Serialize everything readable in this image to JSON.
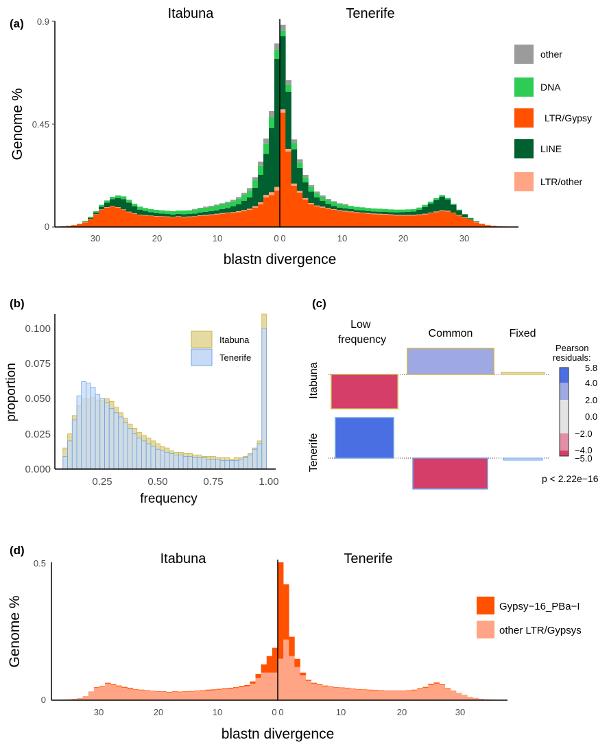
{
  "colors": {
    "other": "#9B9B9B",
    "DNA": "#2ECC55",
    "LTR_Gypsy": "#FF5100",
    "LINE": "#00602F",
    "LTR_other": "#FFA585",
    "itabuna_fill": "#E6DAA3",
    "itabuna_edge": "#C9B24A",
    "tenerife_fill": "#C7DBF7",
    "tenerife_edge": "#6FA3E6",
    "res_high": "#4A6FE3",
    "res_mid": "#9EA8E2",
    "res_low": "#D63E6A"
  },
  "chart_data": [
    {
      "panel": "(a)",
      "type": "bar",
      "stacked": true,
      "group_titles": [
        "Itabuna",
        "Tenerife"
      ],
      "xlabel": "blastn divergence",
      "ylabel": "Genome %",
      "ylim": [
        0,
        0.9
      ],
      "yticks": [
        "0",
        "0.45",
        "0.9"
      ],
      "xticks_left": [
        "30",
        "20",
        "10",
        "0"
      ],
      "xticks_right": [
        "0",
        "10",
        "20",
        "30"
      ],
      "legend_position": "right",
      "series": [
        {
          "name": "other",
          "color": "#9B9B9B",
          "left": [
            0,
            0,
            0,
            0,
            0,
            0,
            0,
            0,
            0,
            0,
            0,
            0,
            0,
            0,
            0,
            0,
            0,
            0,
            0,
            0,
            0,
            0,
            0,
            0,
            0.003,
            0.003,
            0.004,
            0.004,
            0.005,
            0.005,
            0.005,
            0.006,
            0.007,
            0.008,
            0.01,
            0.012,
            0.018,
            0.022,
            0.025,
            0.028
          ],
          "right": [
            0.025,
            0.02,
            0.015,
            0.013,
            0.01,
            0.008,
            0.007,
            0.006,
            0.005,
            0.005,
            0.004,
            0.004,
            0,
            0,
            0,
            0,
            0,
            0,
            0,
            0,
            0,
            0,
            0,
            0,
            0,
            0,
            0,
            0,
            0,
            0,
            0,
            0,
            0,
            0,
            0,
            0,
            0,
            0,
            0,
            0
          ]
        },
        {
          "name": "DNA",
          "color": "#2ECC55",
          "left": [
            0,
            0,
            0,
            0.002,
            0.003,
            0.005,
            0.006,
            0.008,
            0.009,
            0.01,
            0.011,
            0.012,
            0.012,
            0.012,
            0.013,
            0.013,
            0.013,
            0.014,
            0.014,
            0.014,
            0.015,
            0.015,
            0.016,
            0.016,
            0.017,
            0.018,
            0.019,
            0.02,
            0.02,
            0.021,
            0.022,
            0.023,
            0.025,
            0.028,
            0.03,
            0.035,
            0.04,
            0.045,
            0.05,
            0.04
          ],
          "right": [
            0.025,
            0.03,
            0.028,
            0.025,
            0.022,
            0.02,
            0.019,
            0.018,
            0.017,
            0.016,
            0.015,
            0.015,
            0.014,
            0.014,
            0.014,
            0.013,
            0.013,
            0.013,
            0.012,
            0.012,
            0.012,
            0.011,
            0.011,
            0.01,
            0.01,
            0.009,
            0.008,
            0.008,
            0.007,
            0.006,
            0.005,
            0.004,
            0.003,
            0.002,
            0.001,
            0,
            0,
            0,
            0,
            0
          ]
        },
        {
          "name": "LTR/Gypsy",
          "color": "#FF5100",
          "left": [
            0.003,
            0.005,
            0.008,
            0.012,
            0.02,
            0.035,
            0.055,
            0.075,
            0.085,
            0.09,
            0.085,
            0.075,
            0.065,
            0.058,
            0.052,
            0.05,
            0.048,
            0.046,
            0.045,
            0.044,
            0.042,
            0.045,
            0.043,
            0.044,
            0.045,
            0.048,
            0.05,
            0.052,
            0.055,
            0.058,
            0.06,
            0.062,
            0.065,
            0.07,
            0.075,
            0.085,
            0.1,
            0.13,
            0.14,
            0.16
          ],
          "right": [
            0.5,
            0.33,
            0.18,
            0.15,
            0.12,
            0.1,
            0.09,
            0.085,
            0.08,
            0.075,
            0.07,
            0.068,
            0.065,
            0.062,
            0.06,
            0.058,
            0.056,
            0.055,
            0.054,
            0.052,
            0.05,
            0.05,
            0.05,
            0.05,
            0.052,
            0.055,
            0.06,
            0.065,
            0.07,
            0.068,
            0.06,
            0.05,
            0.04,
            0.03,
            0.02,
            0.012,
            0.008,
            0.005,
            0.003,
            0.002
          ]
        },
        {
          "name": "LINE",
          "color": "#00602F",
          "left": [
            0,
            0,
            0,
            0,
            0.002,
            0.004,
            0.007,
            0.012,
            0.02,
            0.03,
            0.04,
            0.045,
            0.04,
            0.03,
            0.022,
            0.018,
            0.015,
            0.013,
            0.012,
            0.011,
            0.01,
            0.01,
            0.011,
            0.011,
            0.012,
            0.012,
            0.013,
            0.014,
            0.015,
            0.017,
            0.02,
            0.025,
            0.03,
            0.04,
            0.05,
            0.08,
            0.12,
            0.18,
            0.28,
            0.56
          ],
          "right": [
            0.32,
            0.25,
            0.15,
            0.1,
            0.07,
            0.05,
            0.035,
            0.025,
            0.018,
            0.014,
            0.012,
            0.01,
            0.01,
            0.009,
            0.009,
            0.009,
            0.009,
            0.009,
            0.01,
            0.01,
            0.011,
            0.012,
            0.013,
            0.015,
            0.02,
            0.03,
            0.04,
            0.05,
            0.06,
            0.05,
            0.035,
            0.02,
            0.012,
            0.006,
            0.003,
            0.001,
            0,
            0,
            0,
            0
          ]
        },
        {
          "name": "LTR/other",
          "color": "#FFA585",
          "left": [
            0,
            0,
            0,
            0,
            0.001,
            0.001,
            0.001,
            0.002,
            0.002,
            0.002,
            0.002,
            0.002,
            0.002,
            0.002,
            0.002,
            0.002,
            0.002,
            0.002,
            0.002,
            0.002,
            0.002,
            0.002,
            0.002,
            0.002,
            0.002,
            0.003,
            0.003,
            0.003,
            0.003,
            0.003,
            0.003,
            0.003,
            0.004,
            0.004,
            0.005,
            0.006,
            0.008,
            0.01,
            0.012,
            0.015
          ],
          "right": [
            0.015,
            0.012,
            0.01,
            0.008,
            0.006,
            0.005,
            0.004,
            0.004,
            0.003,
            0.003,
            0.003,
            0.003,
            0.003,
            0.003,
            0.003,
            0.003,
            0.003,
            0.003,
            0.003,
            0.003,
            0.003,
            0.003,
            0.003,
            0.003,
            0.003,
            0.003,
            0.003,
            0.003,
            0.003,
            0.003,
            0.002,
            0.002,
            0.002,
            0.002,
            0.001,
            0.001,
            0,
            0,
            0,
            0
          ]
        }
      ]
    },
    {
      "panel": "(b)",
      "type": "bar",
      "subtype": "histogram",
      "xlabel": "frequency",
      "ylabel": "proportion",
      "ylim": [
        0,
        0.11
      ],
      "xlim": [
        0.065,
        1.02
      ],
      "yticks": [
        "0.000",
        "0.025",
        "0.050",
        "0.075",
        "0.100"
      ],
      "xticks": [
        "0.25",
        "0.50",
        "0.75",
        "1.00"
      ],
      "bin_start": 0.1,
      "bin_width": 0.02,
      "series": [
        {
          "name": "Itabuna",
          "values": [
            0.015,
            0.025,
            0.038,
            0.045,
            0.05,
            0.05,
            0.051,
            0.049,
            0.049,
            0.05,
            0.048,
            0.044,
            0.04,
            0.036,
            0.032,
            0.029,
            0.026,
            0.024,
            0.022,
            0.02,
            0.018,
            0.016,
            0.015,
            0.013,
            0.012,
            0.012,
            0.011,
            0.011,
            0.01,
            0.01,
            0.009,
            0.009,
            0.009,
            0.008,
            0.008,
            0.008,
            0.007,
            0.008,
            0.008,
            0.009,
            0.011,
            0.015,
            0.02,
            0.11
          ]
        },
        {
          "name": "Tenerife",
          "values": [
            0.009,
            0.02,
            0.035,
            0.052,
            0.062,
            0.061,
            0.058,
            0.053,
            0.05,
            0.047,
            0.043,
            0.04,
            0.037,
            0.033,
            0.029,
            0.025,
            0.022,
            0.02,
            0.018,
            0.016,
            0.014,
            0.013,
            0.012,
            0.011,
            0.01,
            0.01,
            0.009,
            0.009,
            0.008,
            0.008,
            0.008,
            0.007,
            0.007,
            0.007,
            0.006,
            0.006,
            0.006,
            0.006,
            0.007,
            0.008,
            0.01,
            0.014,
            0.018,
            0.1
          ]
        }
      ]
    },
    {
      "panel": "(c)",
      "type": "mosaic",
      "columns": [
        "Low\nfrequency",
        "Common",
        "Fixed"
      ],
      "rows": [
        "Itabuna",
        "Tenerife"
      ],
      "legend_title": "Pearson\nresiduals:",
      "legend_ticks": [
        "5.8",
        "4.0",
        "2.0",
        "0.0",
        "−2.0",
        "−4.0",
        "−5.0"
      ],
      "legend_range": [
        -5.0,
        5.8
      ],
      "p_value": "p < 2.22e−16",
      "cells": [
        {
          "row": "Itabuna",
          "column": "Low frequency",
          "sign": "negative",
          "magnitude": "high"
        },
        {
          "row": "Itabuna",
          "column": "Common",
          "sign": "positive",
          "magnitude": "mid"
        },
        {
          "row": "Itabuna",
          "column": "Fixed",
          "sign": "positive",
          "magnitude": "low"
        },
        {
          "row": "Tenerife",
          "column": "Low frequency",
          "sign": "positive",
          "magnitude": "high"
        },
        {
          "row": "Tenerife",
          "column": "Common",
          "sign": "negative",
          "magnitude": "high"
        },
        {
          "row": "Tenerife",
          "column": "Fixed",
          "sign": "negative",
          "magnitude": "low"
        }
      ]
    },
    {
      "panel": "(d)",
      "type": "bar",
      "stacked": true,
      "group_titles": [
        "Itabuna",
        "Tenerife"
      ],
      "xlabel": "blastn divergence",
      "ylabel": "Genome %",
      "ylim": [
        0,
        0.5
      ],
      "yticks": [
        "0",
        "0.5"
      ],
      "xticks_left": [
        "30",
        "20",
        "10",
        "0"
      ],
      "xticks_right": [
        "0",
        "10",
        "20",
        "30"
      ],
      "legend_position": "right",
      "series": [
        {
          "name": "Gypsy−16_PBa−I",
          "color": "#FF5100",
          "left": [
            0,
            0,
            0,
            0,
            0,
            0,
            0.001,
            0.002,
            0.002,
            0.003,
            0.003,
            0.003,
            0.003,
            0.003,
            0.002,
            0.002,
            0.002,
            0.002,
            0.002,
            0.002,
            0.002,
            0.002,
            0.002,
            0.002,
            0.002,
            0.002,
            0.002,
            0.003,
            0.003,
            0.003,
            0.003,
            0.003,
            0.003,
            0.004,
            0.005,
            0.008,
            0.015,
            0.03,
            0.06,
            0.09
          ],
          "right": [
            0.35,
            0.2,
            0.07,
            0.03,
            0.01,
            0.004,
            0.003,
            0.003,
            0.003,
            0.002,
            0.002,
            0.002,
            0.002,
            0.002,
            0.002,
            0.002,
            0.002,
            0.002,
            0.002,
            0.002,
            0.002,
            0.002,
            0.002,
            0.002,
            0.002,
            0.003,
            0.003,
            0.004,
            0.004,
            0.003,
            0.003,
            0.002,
            0.001,
            0.001,
            0,
            0,
            0,
            0,
            0,
            0
          ]
        },
        {
          "name": "other LTR/Gypsys",
          "color": "#FFA585",
          "left": [
            0.001,
            0.002,
            0.003,
            0.005,
            0.008,
            0.015,
            0.03,
            0.045,
            0.05,
            0.06,
            0.055,
            0.05,
            0.045,
            0.042,
            0.038,
            0.036,
            0.034,
            0.032,
            0.03,
            0.03,
            0.028,
            0.03,
            0.029,
            0.03,
            0.031,
            0.033,
            0.034,
            0.035,
            0.036,
            0.038,
            0.04,
            0.042,
            0.044,
            0.047,
            0.05,
            0.06,
            0.08,
            0.1,
            0.1,
            0.1
          ],
          "right": [
            0.15,
            0.22,
            0.16,
            0.12,
            0.09,
            0.07,
            0.06,
            0.055,
            0.05,
            0.048,
            0.045,
            0.044,
            0.043,
            0.04,
            0.038,
            0.037,
            0.036,
            0.035,
            0.034,
            0.033,
            0.033,
            0.033,
            0.033,
            0.034,
            0.036,
            0.04,
            0.045,
            0.055,
            0.06,
            0.055,
            0.04,
            0.032,
            0.025,
            0.018,
            0.012,
            0.008,
            0.005,
            0.003,
            0.002,
            0.001
          ]
        }
      ]
    }
  ]
}
